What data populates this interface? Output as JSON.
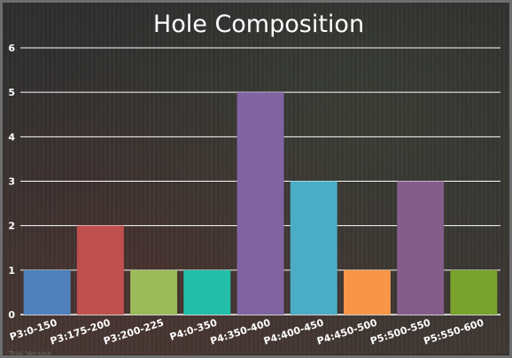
{
  "chart_data": {
    "type": "bar",
    "title": "Hole Composition",
    "categories": [
      "P3:0-150",
      "P3:175-200",
      "P3:200-225",
      "P4:0-350",
      "P4:350-400",
      "P4:400-450",
      "P4:450-500",
      "P5:500-550",
      "P5:550-600"
    ],
    "values": [
      1,
      2,
      1,
      1,
      5,
      3,
      1,
      3,
      1
    ],
    "colors": [
      "#4f81bd",
      "#c0504d",
      "#9bbb59",
      "#23bfaa",
      "#8064a2",
      "#4bacc6",
      "#f79646",
      "#855d8b",
      "#79a22e"
    ],
    "ylim": [
      0,
      6
    ],
    "yticks": [
      0,
      1,
      2,
      3,
      4,
      5,
      6
    ],
    "grid": true,
    "xlabel": "",
    "ylabel": ""
  },
  "watermark": "Trial Version"
}
